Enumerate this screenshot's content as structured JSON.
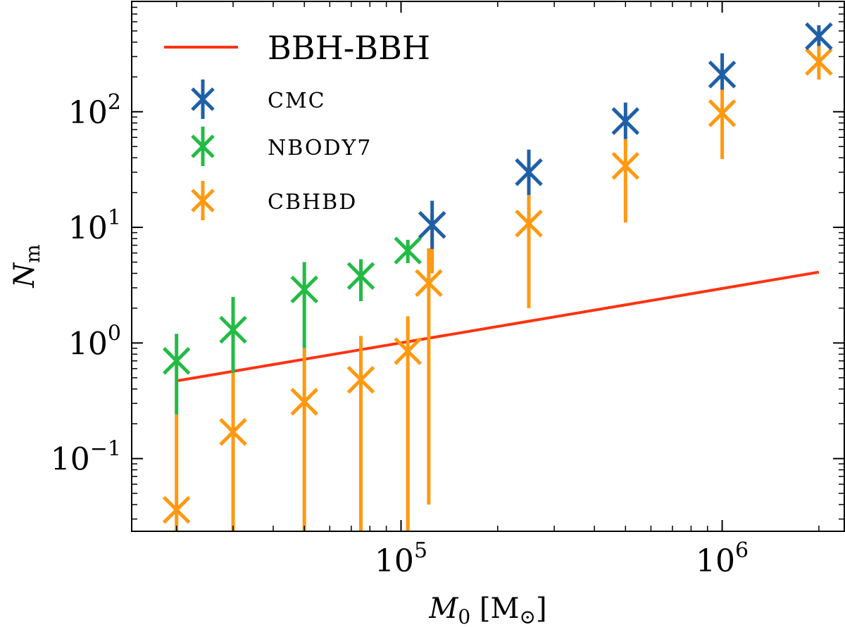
{
  "chart_data": {
    "type": "scatter",
    "xscale": "log",
    "yscale": "log",
    "xlim": [
      14500,
      2400000
    ],
    "ylim": [
      0.0235,
      900
    ],
    "xlabel": {
      "main": "M",
      "sub": "0",
      "unit_open": " [M",
      "unit_sym": "⊙",
      "unit_close": "]"
    },
    "ylabel": {
      "main": "N",
      "sub": "m"
    },
    "xticks": [
      {
        "value": 100000,
        "base": "10",
        "exp": "5"
      },
      {
        "value": 1000000,
        "base": "10",
        "exp": "6"
      }
    ],
    "yticks": [
      {
        "value": 0.1,
        "base": "10",
        "exp": "−1"
      },
      {
        "value": 1,
        "base": "10",
        "exp": "0"
      },
      {
        "value": 10,
        "base": "10",
        "exp": "1"
      },
      {
        "value": 100,
        "base": "10",
        "exp": "2"
      }
    ],
    "legend_position": "top-left",
    "line_series": {
      "name": "BBH-BBH",
      "color": "#ff3311",
      "x": [
        20000,
        2000000
      ],
      "y": [
        0.47,
        4.1
      ]
    },
    "series": [
      {
        "name": "CMC",
        "color": "#1f5fa8",
        "points": [
          {
            "x": 125000,
            "y": 10.5,
            "ylo": 6.5,
            "yhi": 17
          },
          {
            "x": 250000,
            "y": 30,
            "ylo": 19,
            "yhi": 47
          },
          {
            "x": 500000,
            "y": 83,
            "ylo": 58,
            "yhi": 120
          },
          {
            "x": 1000000,
            "y": 210,
            "ylo": 155,
            "yhi": 320
          },
          {
            "x": 2000000,
            "y": 450,
            "ylo": 370,
            "yhi": 560
          }
        ]
      },
      {
        "name": "NBODY7",
        "color": "#22bb44",
        "points": [
          {
            "x": 20000,
            "y": 0.7,
            "ylo": 0.24,
            "yhi": 1.2
          },
          {
            "x": 30000,
            "y": 1.3,
            "ylo": 0.55,
            "yhi": 2.5
          },
          {
            "x": 50000,
            "y": 2.9,
            "ylo": 0.9,
            "yhi": 5.0
          },
          {
            "x": 75000,
            "y": 3.8,
            "ylo": 2.3,
            "yhi": 5.3
          },
          {
            "x": 105000,
            "y": 6.3,
            "ylo": 4.9,
            "yhi": 7.8
          }
        ]
      },
      {
        "name": "CBHBD",
        "color": "#ff9911",
        "points": [
          {
            "x": 20000,
            "y": 0.036,
            "ylo": 0.0235,
            "yhi": 0.24
          },
          {
            "x": 30000,
            "y": 0.17,
            "ylo": 0.0235,
            "yhi": 0.55
          },
          {
            "x": 50000,
            "y": 0.31,
            "ylo": 0.0235,
            "yhi": 0.9
          },
          {
            "x": 75000,
            "y": 0.48,
            "ylo": 0.0235,
            "yhi": 1.15
          },
          {
            "x": 105000,
            "y": 0.85,
            "ylo": 0.0235,
            "yhi": 1.7
          },
          {
            "x": 122000,
            "y": 3.3,
            "ylo": 0.04,
            "yhi": 6.6
          },
          {
            "x": 125000,
            "y": 10.5,
            "ylo": 4,
            "yhi": 13
          },
          {
            "x": 250000,
            "y": 10.8,
            "ylo": 2,
            "yhi": 19
          },
          {
            "x": 500000,
            "y": 34,
            "ylo": 11,
            "yhi": 58
          },
          {
            "x": 1000000,
            "y": 97,
            "ylo": 39,
            "yhi": 155
          },
          {
            "x": 2000000,
            "y": 270,
            "ylo": 190,
            "yhi": 370
          }
        ]
      }
    ]
  }
}
